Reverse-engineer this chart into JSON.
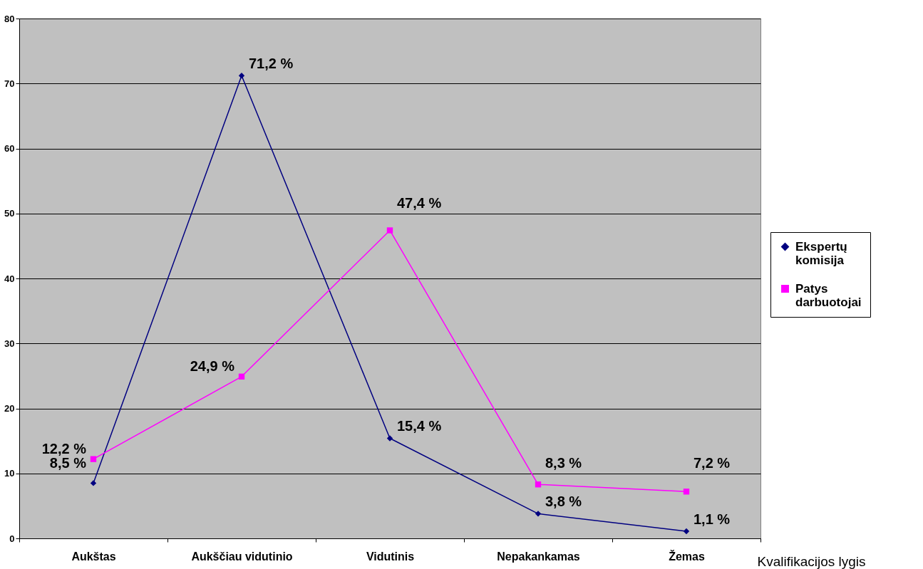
{
  "chart_data": {
    "type": "line",
    "xlabel": "Kvalifikacijos lygis",
    "categories": [
      "Aukštas",
      "Aukščiau vidutinio",
      "Vidutinis",
      "Nepakankamas",
      "Žemas"
    ],
    "series": [
      {
        "name": "Ekspertų komisija",
        "color": "#000080",
        "marker": "diamond",
        "values": [
          8.5,
          71.2,
          15.4,
          3.8,
          1.1
        ],
        "value_labels": [
          "8,5 %",
          "71,2 %",
          "15,4 %",
          "3,8 %",
          "1,1 %"
        ]
      },
      {
        "name": "Patys darbuotojai",
        "color": "#ff00ff",
        "marker": "square",
        "values": [
          12.2,
          24.9,
          47.4,
          8.3,
          7.2
        ],
        "value_labels": [
          "12,2 %",
          "24,9 %",
          "47,4 %",
          "8,3 %",
          "7,2 %"
        ]
      }
    ],
    "ylim": [
      0,
      80
    ],
    "yticks": [
      0,
      10,
      20,
      30,
      40,
      50,
      60,
      70,
      80
    ],
    "grid": "y",
    "legend": "right",
    "line_style": "solid"
  }
}
